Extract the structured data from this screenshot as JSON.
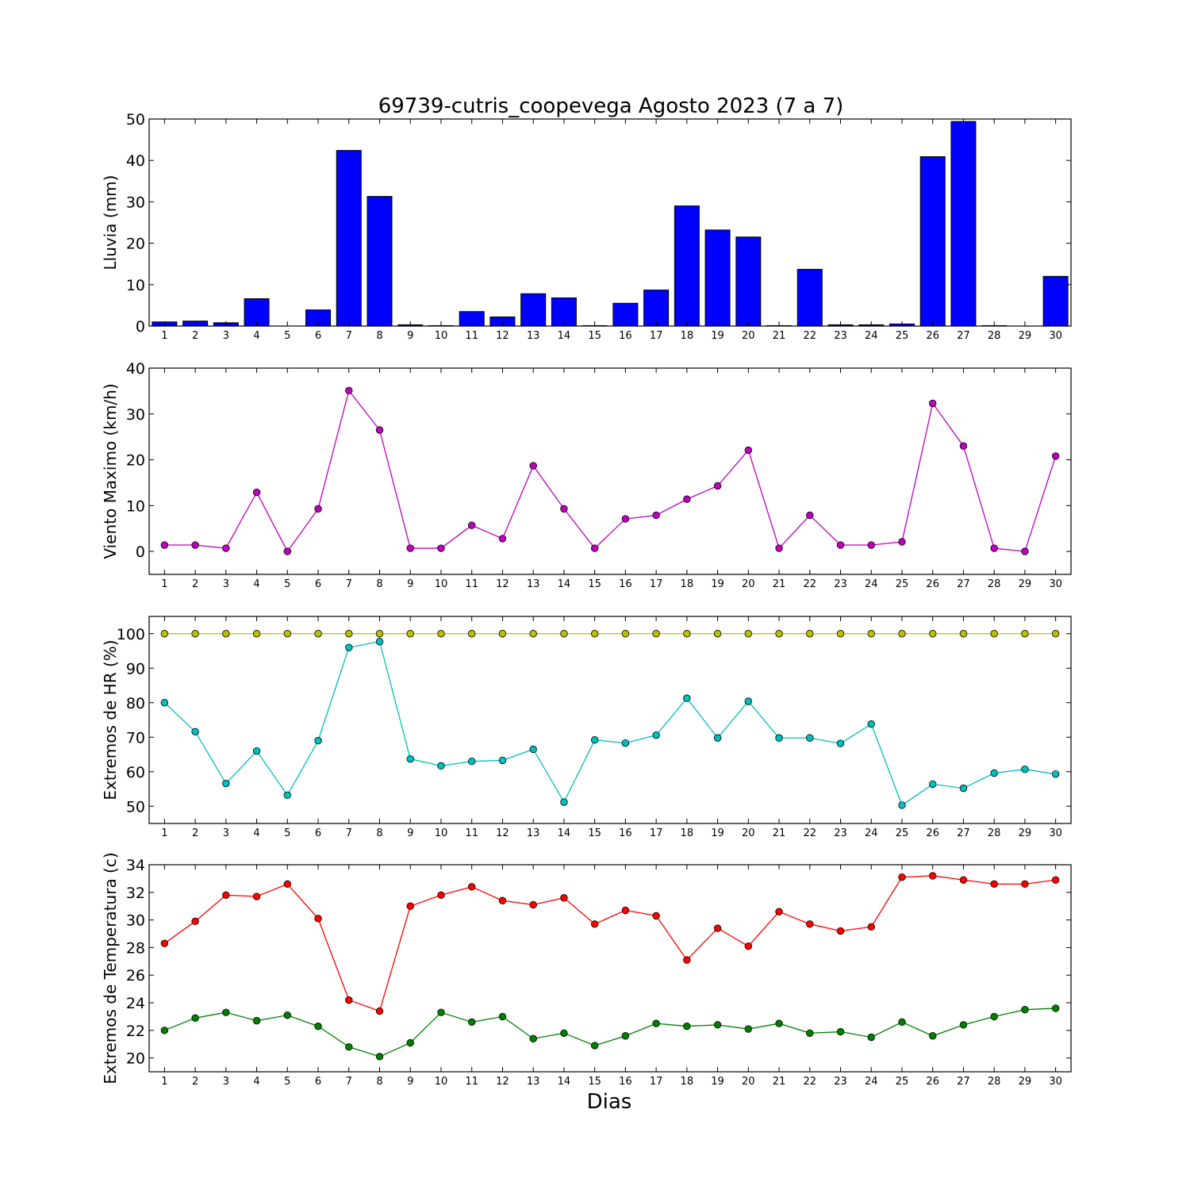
{
  "title": "69739-cutris_coopevega Agosto 2023  (7 a 7)",
  "xlabel": "Dias",
  "chart_data": [
    {
      "type": "bar",
      "ylabel": "Lluvia (mm)",
      "ylim": [
        0,
        50
      ],
      "yticks": [
        0,
        10,
        20,
        30,
        40,
        50
      ],
      "categories": [
        1,
        2,
        3,
        4,
        5,
        6,
        7,
        8,
        9,
        10,
        11,
        12,
        13,
        14,
        15,
        16,
        17,
        18,
        19,
        20,
        21,
        22,
        23,
        24,
        25,
        26,
        27,
        28,
        29,
        30
      ],
      "series": [
        {
          "color": "#0000ff",
          "values": [
            1.0,
            1.2,
            0.8,
            6.6,
            0,
            3.9,
            42.4,
            31.3,
            0.3,
            0.1,
            3.5,
            2.2,
            7.8,
            6.8,
            0.1,
            5.5,
            8.7,
            29.0,
            23.2,
            21.5,
            0.1,
            13.7,
            0.3,
            0.3,
            0.5,
            40.9,
            49.4,
            0.1,
            0,
            12.0
          ]
        }
      ]
    },
    {
      "type": "line",
      "ylabel": "Viento Maximo (km/h)",
      "ylim": [
        -5,
        40
      ],
      "yticks": [
        0,
        10,
        20,
        30,
        40
      ],
      "categories": [
        1,
        2,
        3,
        4,
        5,
        6,
        7,
        8,
        9,
        10,
        11,
        12,
        13,
        14,
        15,
        16,
        17,
        18,
        19,
        20,
        21,
        22,
        23,
        24,
        25,
        26,
        27,
        28,
        29,
        30
      ],
      "series": [
        {
          "color": "#bf00bf",
          "values": [
            1.4,
            1.4,
            0.7,
            12.9,
            0,
            9.3,
            35.1,
            26.5,
            0.7,
            0.7,
            5.7,
            2.8,
            18.7,
            9.3,
            0.7,
            7.1,
            7.9,
            11.4,
            14.3,
            22.1,
            0.7,
            7.9,
            1.4,
            1.4,
            2.1,
            32.3,
            23.0,
            0.7,
            0,
            20.8
          ]
        }
      ]
    },
    {
      "type": "line",
      "ylabel": "Extremos de HR (%)",
      "ylim": [
        45,
        105
      ],
      "yticks": [
        50,
        60,
        70,
        80,
        90,
        100
      ],
      "categories": [
        1,
        2,
        3,
        4,
        5,
        6,
        7,
        8,
        9,
        10,
        11,
        12,
        13,
        14,
        15,
        16,
        17,
        18,
        19,
        20,
        21,
        22,
        23,
        24,
        25,
        26,
        27,
        28,
        29,
        30
      ],
      "series": [
        {
          "color": "#bfbf00",
          "values": [
            100,
            100,
            100,
            100,
            100,
            100,
            100,
            100,
            100,
            100,
            100,
            100,
            100,
            100,
            100,
            100,
            100,
            100,
            100,
            100,
            100,
            100,
            100,
            100,
            100,
            100,
            100,
            100,
            100,
            100
          ]
        },
        {
          "color": "#00bfbf",
          "values": [
            80.0,
            71.6,
            56.6,
            66.0,
            53.2,
            69.0,
            96.0,
            97.7,
            63.7,
            61.7,
            63.0,
            63.3,
            66.5,
            51.2,
            69.2,
            68.3,
            70.6,
            81.3,
            69.8,
            80.4,
            69.8,
            69.8,
            68.2,
            73.8,
            50.3,
            56.4,
            55.2,
            59.6,
            60.7,
            59.3
          ]
        }
      ]
    },
    {
      "type": "line",
      "ylabel": "Extremos de Temperatura (c)",
      "ylim": [
        19,
        34
      ],
      "yticks": [
        20,
        22,
        24,
        26,
        28,
        30,
        32,
        34
      ],
      "categories": [
        1,
        2,
        3,
        4,
        5,
        6,
        7,
        8,
        9,
        10,
        11,
        12,
        13,
        14,
        15,
        16,
        17,
        18,
        19,
        20,
        21,
        22,
        23,
        24,
        25,
        26,
        27,
        28,
        29,
        30
      ],
      "series": [
        {
          "color": "#ff0000",
          "values": [
            28.3,
            29.9,
            31.8,
            31.7,
            32.6,
            30.1,
            24.2,
            23.4,
            31.0,
            31.8,
            32.4,
            31.4,
            31.1,
            31.6,
            29.7,
            30.7,
            30.3,
            27.1,
            29.4,
            28.1,
            30.6,
            29.7,
            29.2,
            29.5,
            33.1,
            33.2,
            32.9,
            32.6,
            32.6,
            32.9
          ]
        },
        {
          "color": "#007f00",
          "values": [
            22.0,
            22.9,
            23.3,
            22.7,
            23.1,
            22.3,
            20.8,
            20.1,
            21.1,
            23.3,
            22.6,
            23.0,
            21.4,
            21.8,
            20.9,
            21.6,
            22.5,
            22.3,
            22.4,
            22.1,
            22.5,
            21.8,
            21.9,
            21.5,
            22.6,
            21.6,
            22.4,
            23.0,
            23.5,
            23.6
          ]
        }
      ]
    }
  ]
}
